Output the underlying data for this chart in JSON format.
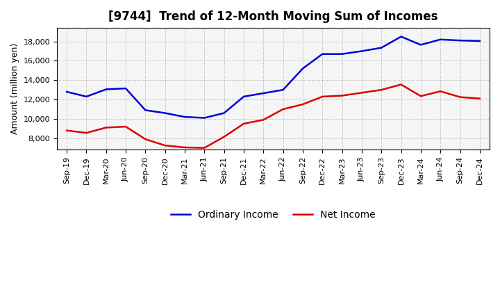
{
  "title": "[9744]  Trend of 12-Month Moving Sum of Incomes",
  "ylabel": "Amount (million yen)",
  "background_color": "#ffffff",
  "plot_background": "#f5f5f5",
  "grid_color": "#999999",
  "x_labels": [
    "Sep-19",
    "Dec-19",
    "Mar-20",
    "Jun-20",
    "Sep-20",
    "Dec-20",
    "Mar-21",
    "Jun-21",
    "Sep-21",
    "Dec-21",
    "Mar-22",
    "Jun-22",
    "Sep-22",
    "Dec-22",
    "Mar-23",
    "Jun-23",
    "Sep-23",
    "Dec-23",
    "Mar-24",
    "Jun-24",
    "Sep-24",
    "Dec-24"
  ],
  "ordinary_income": [
    12800,
    12300,
    13050,
    13150,
    10900,
    10600,
    10200,
    10100,
    10600,
    12300,
    12650,
    13000,
    15200,
    16700,
    16700,
    17000,
    17350,
    18500,
    17650,
    18200,
    18100,
    18050
  ],
  "net_income": [
    8800,
    8550,
    9100,
    9200,
    7900,
    7250,
    7050,
    7000,
    8150,
    9500,
    9900,
    11000,
    11500,
    12300,
    12400,
    12700,
    13000,
    13550,
    12350,
    12850,
    12250,
    12100
  ],
  "ordinary_color": "#0000dd",
  "net_color": "#dd0000",
  "line_width": 1.8,
  "ylim_min": 6800,
  "ylim_max": 19400,
  "legend_ordinary": "Ordinary Income",
  "legend_net": "Net Income",
  "title_fontsize": 12,
  "axis_fontsize": 9,
  "tick_fontsize": 8,
  "legend_fontsize": 10
}
